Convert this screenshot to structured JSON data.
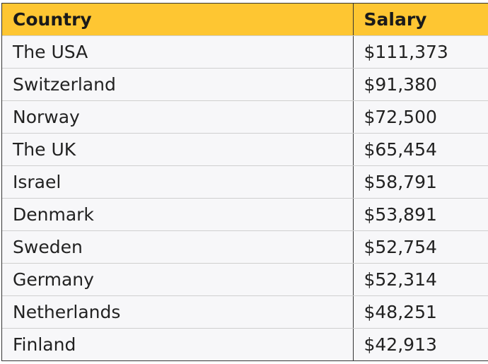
{
  "table": {
    "headers": {
      "country": "Country",
      "salary": "Salary"
    },
    "rows": [
      {
        "country": "The USA",
        "salary": "$111,373"
      },
      {
        "country": "Switzerland",
        "salary": "$91,380"
      },
      {
        "country": "Norway",
        "salary": "$72,500"
      },
      {
        "country": "The UK",
        "salary": "$65,454"
      },
      {
        "country": "Israel",
        "salary": "$58,791"
      },
      {
        "country": "Denmark",
        "salary": "$53,891"
      },
      {
        "country": "Sweden",
        "salary": "$52,754"
      },
      {
        "country": "Germany",
        "salary": "$52,314"
      },
      {
        "country": "Netherlands",
        "salary": "$48,251"
      },
      {
        "country": "Finland",
        "salary": "$42,913"
      }
    ]
  },
  "colors": {
    "header_background": "#fec632",
    "row_background": "#f7f7f9",
    "border": "#333333"
  }
}
